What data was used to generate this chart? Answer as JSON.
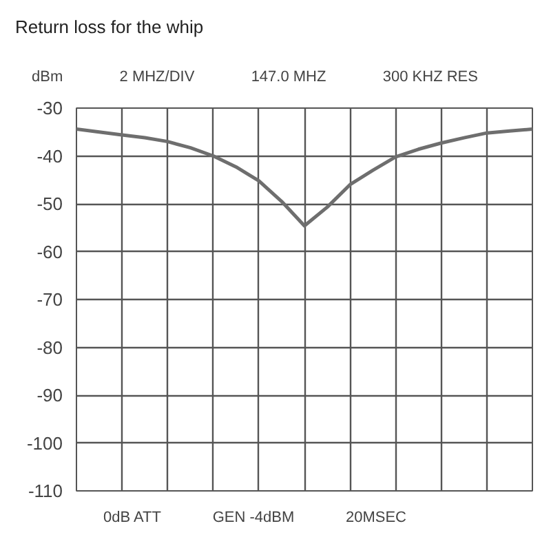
{
  "chart_data": {
    "type": "line",
    "title": "Return loss for the whip",
    "ylabel": "dBm",
    "annotations": [
      "2 MHZ/DIV",
      "147.0 MHZ",
      "300 KHZ RES",
      "0dB ATT",
      "GEN -4dBM",
      "20MSEC"
    ],
    "categories": [
      null,
      null,
      null,
      null,
      null,
      null,
      null,
      null,
      null,
      null,
      null,
      null,
      null,
      null,
      null,
      null,
      null,
      null,
      null,
      null,
      null
    ],
    "series": [
      {
        "color": "#6e6e6e",
        "values": [
          -34.4,
          -35,
          -35.6,
          -36.2,
          -37,
          -38.3,
          -40,
          -42.3,
          -45.2,
          -49.5,
          -54.6,
          -50.7,
          -46,
          -43,
          -40.2,
          -38.6,
          -37.3,
          -36.2,
          -35.2,
          -34.8,
          -34.4
        ]
      }
    ],
    "ylim": [
      -110,
      -30
    ],
    "yticks": [
      -30,
      -40,
      -50,
      -60,
      -70,
      -80,
      -90,
      -100,
      -110
    ],
    "tick_labels": "y",
    "grid": true,
    "marker": "none",
    "line_style": "solid"
  }
}
